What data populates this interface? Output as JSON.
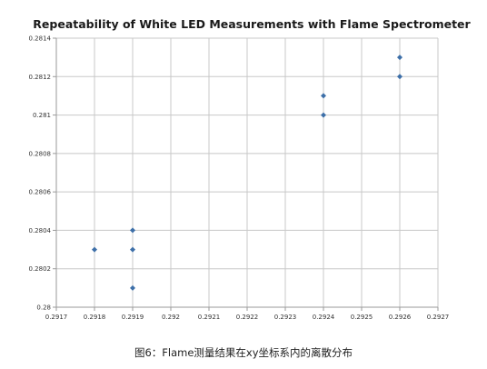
{
  "caption": "图6：Flame测量结果在xy坐标系内的离散分布",
  "chart_data": {
    "type": "scatter",
    "title": "Repeatability of White LED Measurements with Flame Spectrometer",
    "xlabel": "",
    "ylabel": "",
    "xlim": [
      0.2917,
      0.2927
    ],
    "ylim": [
      0.28,
      0.2814
    ],
    "x_ticks": [
      "0.2917",
      "0.2918",
      "0.2919",
      "0.292",
      "0.2921",
      "0.2922",
      "0.2923",
      "0.2924",
      "0.2925",
      "0.2926",
      "0.2927"
    ],
    "y_ticks": [
      "0.28",
      "0.2802",
      "0.2804",
      "0.2806",
      "0.2808",
      "0.281",
      "0.2812",
      "0.2814"
    ],
    "grid": true,
    "legend": "none",
    "marker_color": "#3d6fa8",
    "points": [
      {
        "x": 0.2918,
        "y": 0.2803
      },
      {
        "x": 0.2919,
        "y": 0.2804
      },
      {
        "x": 0.2919,
        "y": 0.2803
      },
      {
        "x": 0.2919,
        "y": 0.2801
      },
      {
        "x": 0.2924,
        "y": 0.2811
      },
      {
        "x": 0.2924,
        "y": 0.281
      },
      {
        "x": 0.2926,
        "y": 0.2813
      },
      {
        "x": 0.2926,
        "y": 0.2812
      }
    ]
  }
}
